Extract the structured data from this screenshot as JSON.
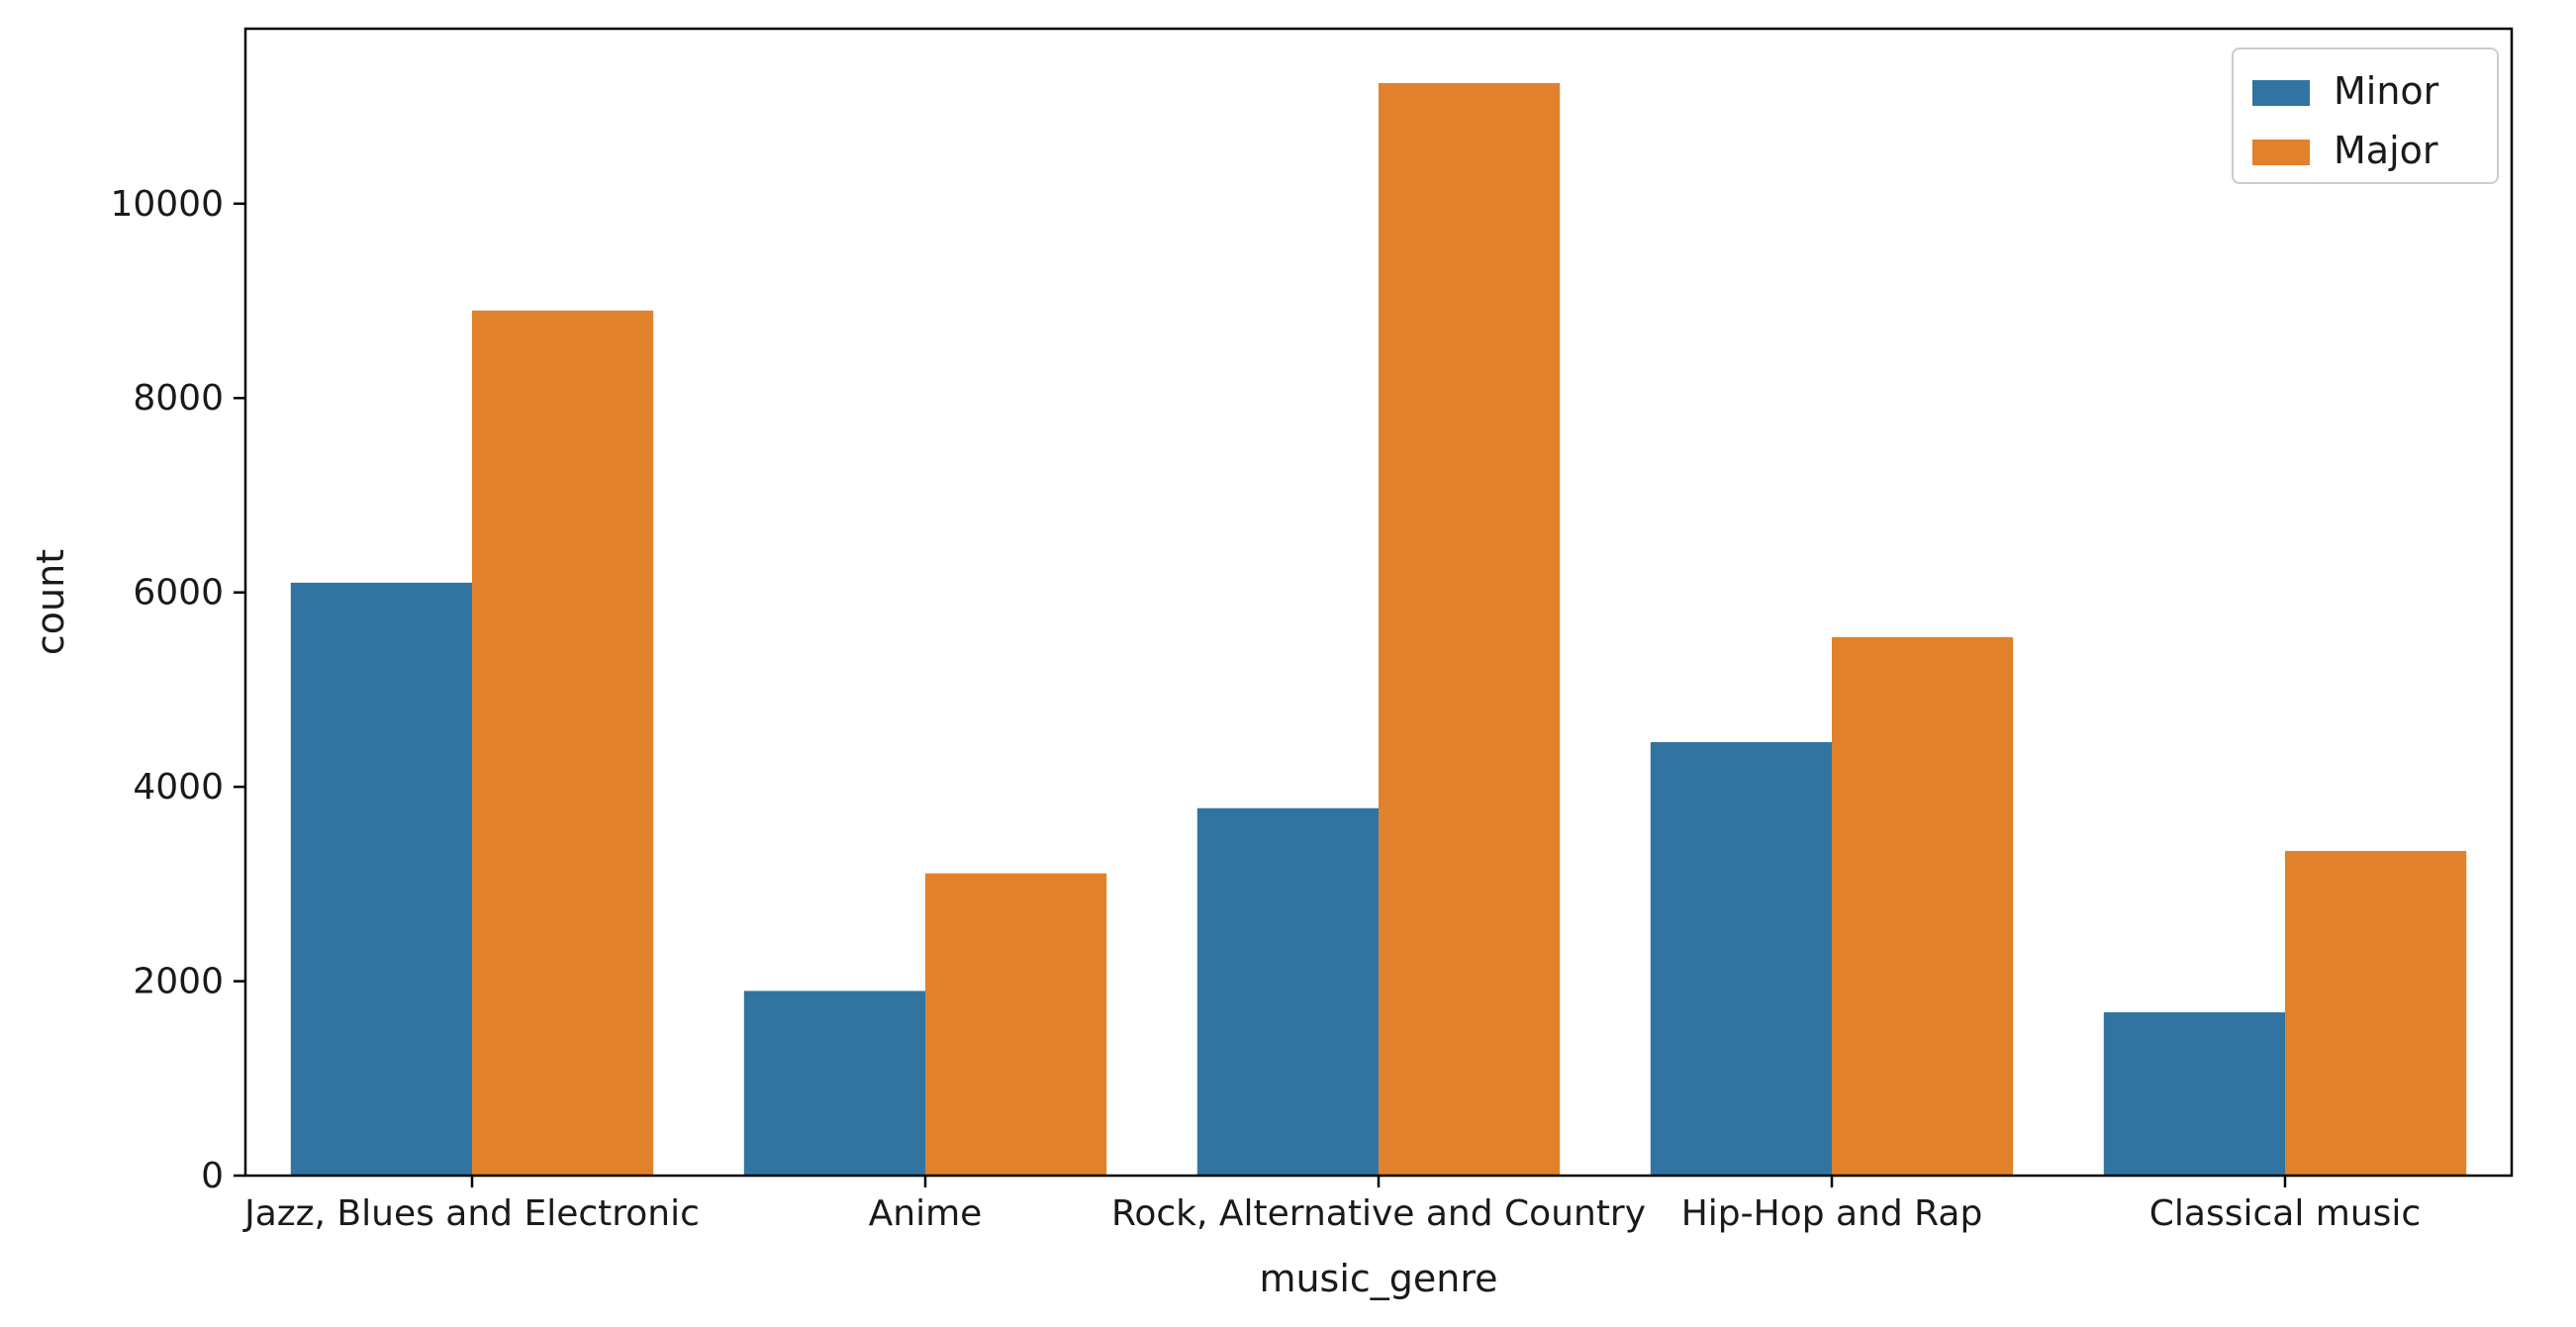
{
  "chart_data": {
    "type": "bar",
    "xlabel": "music_genre",
    "ylabel": "count",
    "categories": [
      "Jazz, Blues and Electronic",
      "Anime",
      "Rock, Alternative and Country",
      "Hip-Hop and Rap",
      "Classical music"
    ],
    "series": [
      {
        "name": "Minor",
        "color": "#3274a1",
        "values": [
          6100,
          1900,
          3780,
          4460,
          1680
        ]
      },
      {
        "name": "Major",
        "color": "#e1812c",
        "values": [
          8900,
          3110,
          11240,
          5540,
          3340
        ]
      }
    ],
    "ylim": [
      0,
      11800
    ],
    "yticks": [
      0,
      2000,
      4000,
      6000,
      8000,
      10000
    ],
    "grid": false,
    "legend_position": "top-right"
  }
}
